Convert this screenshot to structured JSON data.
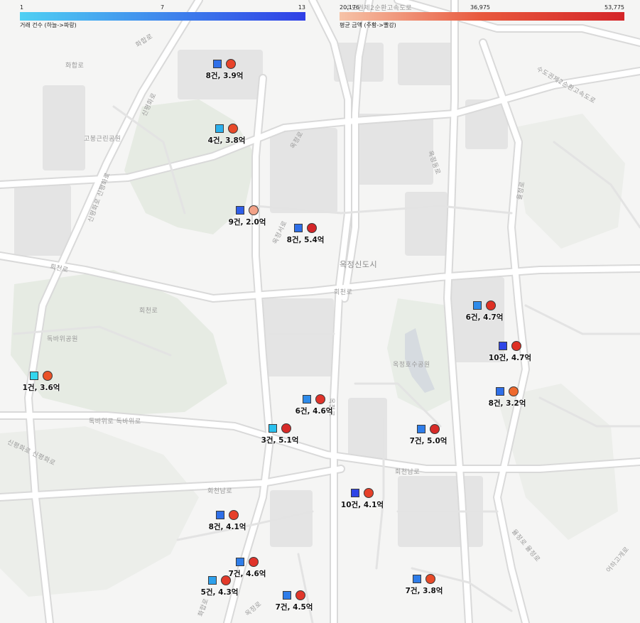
{
  "legend": {
    "count": {
      "ticks": [
        "1",
        "7",
        "13"
      ],
      "title": "거래 건수 (하늘->파랑)",
      "colors": [
        "#4fd0f3",
        "#2f3fe6"
      ]
    },
    "amount": {
      "ticks": [
        "20,176",
        "36,975",
        "53,775"
      ],
      "title": "평균 금액 (주황->빨강)",
      "colors": [
        "#f6c3a7",
        "#e8583d",
        "#d42528"
      ]
    }
  },
  "place_labels": {
    "sudogwon": "수도권제2순환고속도로",
    "sudogwon_right": "수도권제2순환고속도로",
    "hwahap_top": "화합로",
    "hwahap_left": "화합로",
    "sinpyeong": "신평화로",
    "gobong": "고봉근린공원",
    "sinpyeong_left": "신평화로 신평화로",
    "okjeong_road_a": "옥정로",
    "okjeong_road_b": "옥정서로",
    "okjeong_dong": "옥정동로",
    "hoecheon_left": "회천로",
    "hoecheon_mid": "회천로",
    "hoecheon_center": "회천로",
    "okjeong_city": "옥정신도시",
    "dokbawi_park": "독바위공원",
    "okjeong_lake": "옥정호수공원",
    "dokbawi_road": "독바위로  독바위로",
    "sinpyeong_bottom": "신평화로 신평화로",
    "hoecheon_nam_a": "회천남로",
    "hoecheon_nam_b": "회천남로",
    "gwangjeong": "율정로",
    "okjeong_b": "옥정로",
    "okjeong_bottom": "옥정로",
    "hwahap_bottom": "화합로",
    "ojeong_east": "어하고개로",
    "yuljeong_bottom": "율정로 율정로"
  },
  "markers": [
    {
      "label": "8건, 3.9억",
      "count": 8,
      "amount_eok": 3.9,
      "sq": "#2f6fe8",
      "ci": "#e8432a"
    },
    {
      "label": "4건, 3.8억",
      "count": 4,
      "amount_eok": 3.8,
      "sq": "#2bb0ec",
      "ci": "#e84a28"
    },
    {
      "label": "9건, 2.0억",
      "count": 9,
      "amount_eok": 2.0,
      "sq": "#2f5ee8",
      "ci": "#f2a288"
    },
    {
      "label": "8건, 5.4억",
      "count": 8,
      "amount_eok": 5.4,
      "sq": "#2f6fe8",
      "ci": "#d42528"
    },
    {
      "label": "6건, 4.7억",
      "count": 6,
      "amount_eok": 4.7,
      "sq": "#2e8bea",
      "ci": "#de3024"
    },
    {
      "label": "10건, 4.7억",
      "count": 10,
      "amount_eok": 4.7,
      "sq": "#2f45e6",
      "ci": "#de3024"
    },
    {
      "label": "1건, 3.6억",
      "count": 1,
      "amount_eok": 3.6,
      "sq": "#33d6ee",
      "ci": "#ea5228"
    },
    {
      "label": "8건, 3.2억",
      "count": 8,
      "amount_eok": 3.2,
      "sq": "#2f6fe8",
      "ci": "#ef6a2e"
    },
    {
      "label": "6건, 4.6억",
      "count": 6,
      "amount_eok": 4.6,
      "sq": "#2e8bea",
      "ci": "#e0332a"
    },
    {
      "label": "3건, 5.1억",
      "count": 3,
      "amount_eok": 5.1,
      "sq": "#2ac0ee",
      "ci": "#d72a28"
    },
    {
      "label": "7건, 5.0억",
      "count": 7,
      "amount_eok": 5.0,
      "sq": "#2f7de9",
      "ci": "#d82b28"
    },
    {
      "label": "10건, 4.1억",
      "count": 10,
      "amount_eok": 4.1,
      "sq": "#2f45e6",
      "ci": "#e6402a"
    },
    {
      "label": "8건, 4.1억",
      "count": 8,
      "amount_eok": 4.1,
      "sq": "#2f6fe8",
      "ci": "#e6402a"
    },
    {
      "label": "7건, 4.6억",
      "count": 7,
      "amount_eok": 4.6,
      "sq": "#2f7de9",
      "ci": "#e0332a"
    },
    {
      "label": "5건, 4.3억",
      "count": 5,
      "amount_eok": 4.3,
      "sq": "#2ea0eb",
      "ci": "#e33a2a"
    },
    {
      "label": "7건, 4.5억",
      "count": 7,
      "amount_eok": 4.5,
      "sq": "#2f7de9",
      "ci": "#e1362a"
    },
    {
      "label": "7건, 3.8억",
      "count": 7,
      "amount_eok": 3.8,
      "sq": "#2f7de9",
      "ci": "#e84a28"
    }
  ]
}
